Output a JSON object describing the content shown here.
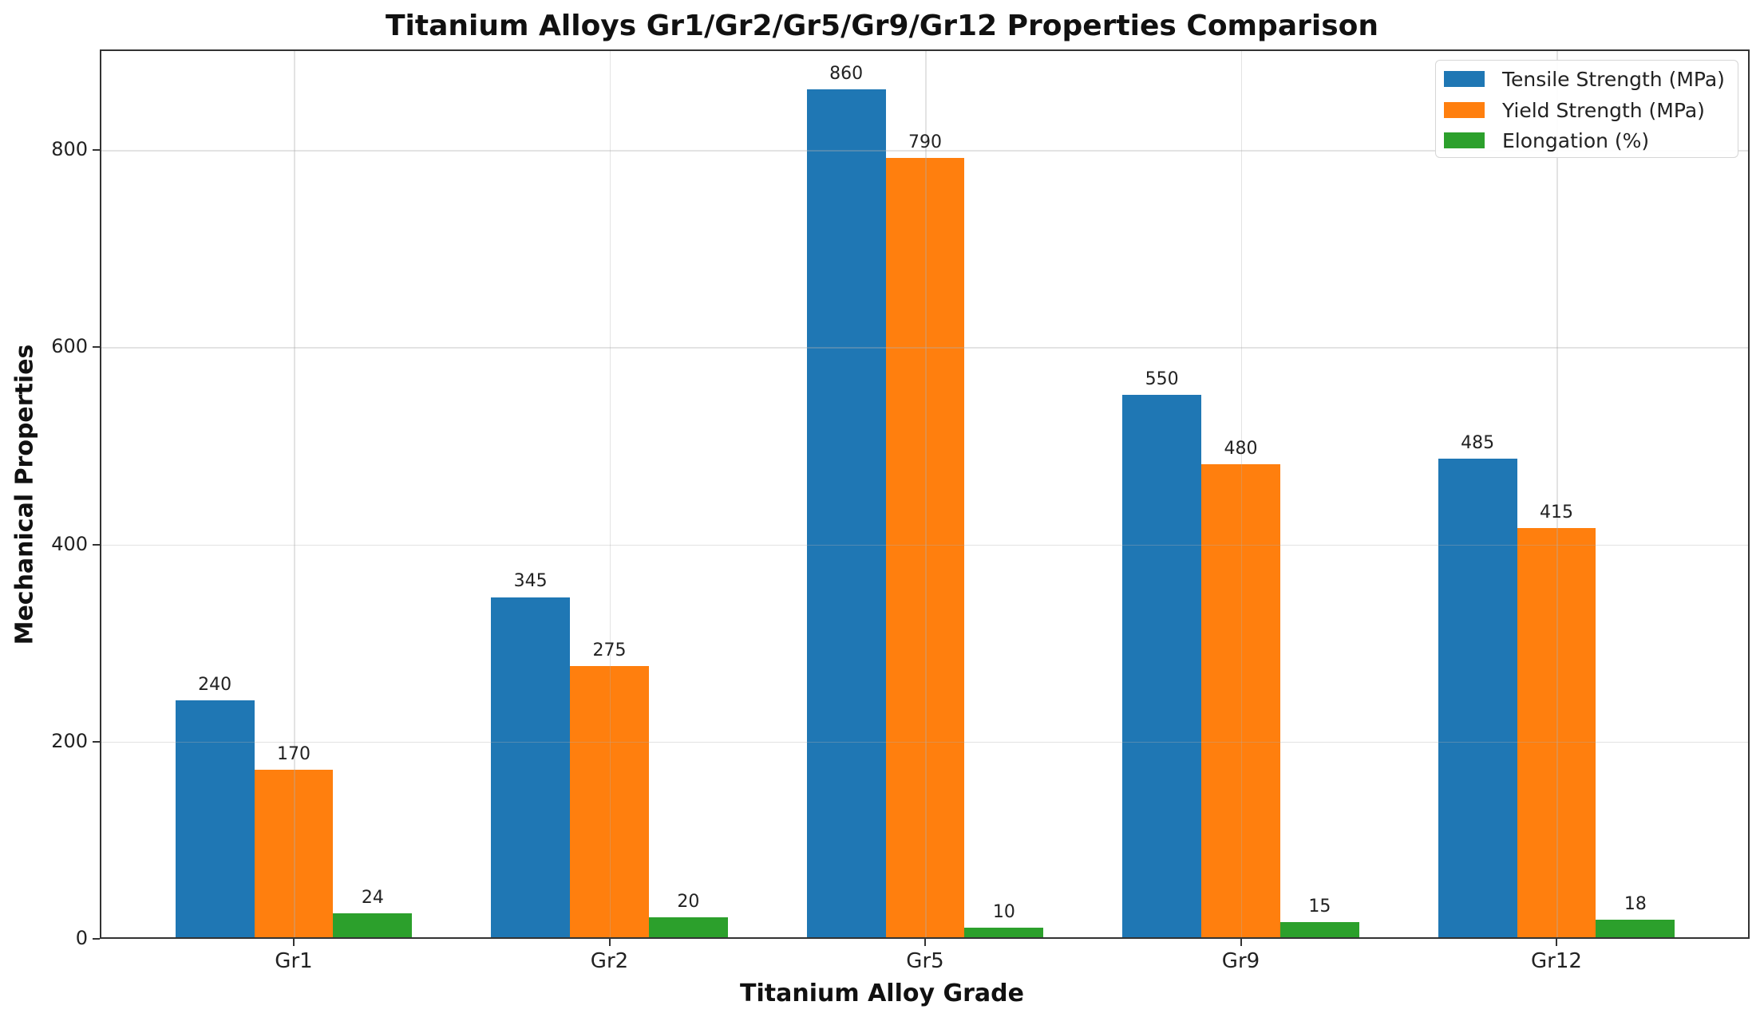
{
  "chart_data": {
    "type": "bar",
    "title": "Titanium Alloys Gr1/Gr2/Gr5/Gr9/Gr12 Properties Comparison",
    "xlabel": "Titanium Alloy Grade",
    "ylabel": "Mechanical Properties",
    "categories": [
      "Gr1",
      "Gr2",
      "Gr5",
      "Gr9",
      "Gr12"
    ],
    "series": [
      {
        "name": "Tensile Strength (MPa)",
        "color": "#1f77b4",
        "values": [
          240,
          345,
          860,
          550,
          485
        ]
      },
      {
        "name": "Yield Strength (MPa)",
        "color": "#ff7f0e",
        "values": [
          170,
          275,
          790,
          480,
          415
        ]
      },
      {
        "name": "Elongation (%)",
        "color": "#2ca02c",
        "values": [
          24,
          20,
          10,
          15,
          18
        ]
      }
    ],
    "yticks": [
      0,
      200,
      400,
      600,
      800
    ],
    "ylim": [
      0,
      902
    ],
    "grid": true,
    "legend_position": "upper right",
    "data_labels": true
  }
}
